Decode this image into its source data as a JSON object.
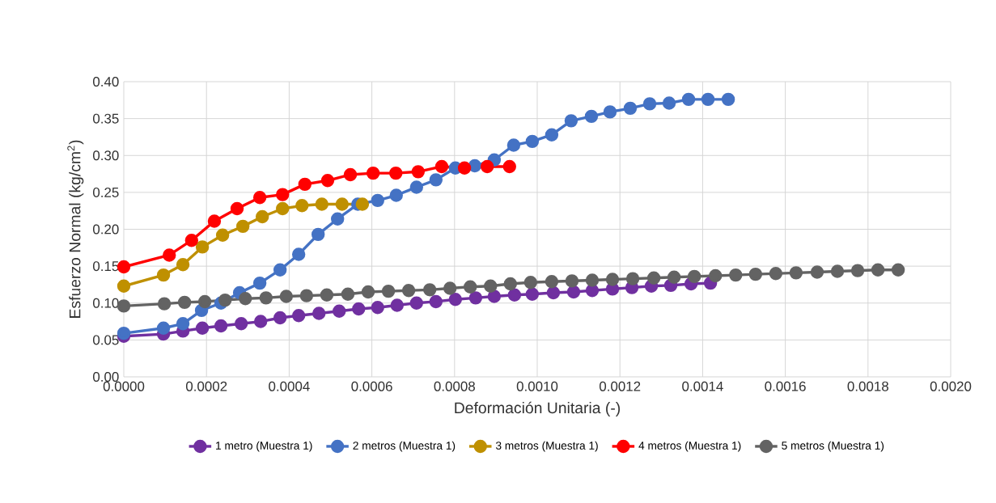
{
  "chart_data": {
    "type": "line",
    "xlabel": "Deformación Unitaria (-)",
    "ylabel": "Esfuerzo Normal (kg/cm$^{2}$)",
    "xlim": [
      0,
      0.002
    ],
    "ylim": [
      0,
      0.4
    ],
    "xticks": [
      {
        "value": 0,
        "label": "0.0000"
      },
      {
        "value": 0.0002,
        "label": "0.0002"
      },
      {
        "value": 0.0004,
        "label": "0.0004"
      },
      {
        "value": 0.0006,
        "label": "0.0006"
      },
      {
        "value": 0.0008,
        "label": "0.0008"
      },
      {
        "value": 0.001,
        "label": "0.0010"
      },
      {
        "value": 0.0012,
        "label": "0.0012"
      },
      {
        "value": 0.0014,
        "label": "0.0014"
      },
      {
        "value": 0.0016,
        "label": "0.0016"
      },
      {
        "value": 0.0018,
        "label": "0.0018"
      },
      {
        "value": 0.002,
        "label": "0.0020"
      }
    ],
    "yticks": [
      {
        "value": 0,
        "label": "0.00"
      },
      {
        "value": 0.05,
        "label": "0.05"
      },
      {
        "value": 0.1,
        "label": "0.10"
      },
      {
        "value": 0.15,
        "label": "0.15"
      },
      {
        "value": 0.2,
        "label": "0.20"
      },
      {
        "value": 0.25,
        "label": "0.25"
      },
      {
        "value": 0.3,
        "label": "0.30"
      },
      {
        "value": 0.35,
        "label": "0.35"
      },
      {
        "value": 0.4,
        "label": "0.40"
      }
    ],
    "grid": true,
    "legend": "bottom",
    "marker": "circle",
    "line_style": "solid",
    "series": [
      {
        "name": "1 metro (Muestra 1)",
        "color": "#7030a0",
        "x": [
          0,
          9.6e-05,
          0.000143,
          0.00019,
          0.000235,
          0.000284,
          0.000331,
          0.000378,
          0.000423,
          0.000472,
          0.000521,
          0.000568,
          0.000614,
          0.000661,
          0.000708,
          0.000755,
          0.000802,
          0.000851,
          0.000896,
          0.000945,
          0.000988,
          0.001039,
          0.001088,
          0.001133,
          0.001182,
          0.001229,
          0.001276,
          0.001323,
          0.001372,
          0.001419
        ],
        "values": [
          0.055,
          0.058,
          0.062,
          0.066,
          0.069,
          0.072,
          0.075,
          0.08,
          0.083,
          0.086,
          0.089,
          0.092,
          0.094,
          0.097,
          0.1,
          0.102,
          0.105,
          0.107,
          0.109,
          0.111,
          0.112,
          0.114,
          0.115,
          0.117,
          0.119,
          0.121,
          0.123,
          0.124,
          0.126,
          0.127
        ]
      },
      {
        "name": "2 metros (Muestra 1)",
        "color": "#4472c4",
        "x": [
          0,
          9.6e-05,
          0.000143,
          0.000188,
          0.000235,
          0.00028,
          0.000329,
          0.000378,
          0.000423,
          0.00047,
          0.000517,
          0.000566,
          0.000614,
          0.000659,
          0.000708,
          0.000755,
          0.000802,
          0.000849,
          0.000896,
          0.000943,
          0.000988,
          0.001035,
          0.001082,
          0.001131,
          0.001176,
          0.001225,
          0.001272,
          0.001319,
          0.001366,
          0.001413,
          0.001462
        ],
        "values": [
          0.059,
          0.066,
          0.072,
          0.09,
          0.1,
          0.114,
          0.127,
          0.145,
          0.166,
          0.193,
          0.214,
          0.234,
          0.239,
          0.246,
          0.257,
          0.267,
          0.283,
          0.286,
          0.294,
          0.314,
          0.319,
          0.328,
          0.347,
          0.353,
          0.359,
          0.364,
          0.37,
          0.371,
          0.376,
          0.376,
          0.376
        ]
      },
      {
        "name": "3 metros (Muestra 1)",
        "color": "#bf9000",
        "x": [
          0,
          9.6e-05,
          0.000143,
          0.00019,
          0.000239,
          0.000288,
          0.000335,
          0.000384,
          0.000431,
          0.000479,
          0.000528,
          0.000577
        ],
        "values": [
          0.123,
          0.138,
          0.152,
          0.176,
          0.192,
          0.204,
          0.217,
          0.228,
          0.232,
          0.234,
          0.234,
          0.234
        ]
      },
      {
        "name": "4 metros (Muestra 1)",
        "color": "#ff0000",
        "x": [
          0,
          0.00011,
          0.000164,
          0.000219,
          0.000274,
          0.000329,
          0.000384,
          0.000438,
          0.000493,
          0.000548,
          0.000603,
          0.000658,
          0.000712,
          0.000769,
          0.000824,
          0.000879,
          0.000933
        ],
        "values": [
          0.149,
          0.165,
          0.185,
          0.211,
          0.228,
          0.243,
          0.247,
          0.261,
          0.266,
          0.274,
          0.276,
          0.276,
          0.278,
          0.285,
          0.283,
          0.285,
          0.285
        ]
      },
      {
        "name": "5 metros (Muestra 1)",
        "color": "#636363",
        "x": [
          0,
          9.8e-05,
          0.000147,
          0.000196,
          0.000245,
          0.000294,
          0.000344,
          0.000393,
          0.000442,
          0.000491,
          0.000542,
          0.000591,
          0.00064,
          0.000689,
          0.00074,
          0.000789,
          0.000838,
          0.000887,
          0.000935,
          0.000984,
          0.001035,
          0.001084,
          0.001133,
          0.001182,
          0.001231,
          0.001282,
          0.001331,
          0.00138,
          0.001431,
          0.00148,
          0.001528,
          0.001577,
          0.001626,
          0.001677,
          0.001726,
          0.001775,
          0.001824,
          0.001873
        ],
        "values": [
          0.096,
          0.099,
          0.101,
          0.102,
          0.104,
          0.106,
          0.107,
          0.109,
          0.11,
          0.111,
          0.112,
          0.115,
          0.116,
          0.117,
          0.118,
          0.12,
          0.122,
          0.123,
          0.126,
          0.128,
          0.129,
          0.13,
          0.131,
          0.132,
          0.133,
          0.134,
          0.135,
          0.136,
          0.137,
          0.138,
          0.139,
          0.14,
          0.141,
          0.142,
          0.143,
          0.144,
          0.145,
          0.145
        ]
      }
    ]
  }
}
